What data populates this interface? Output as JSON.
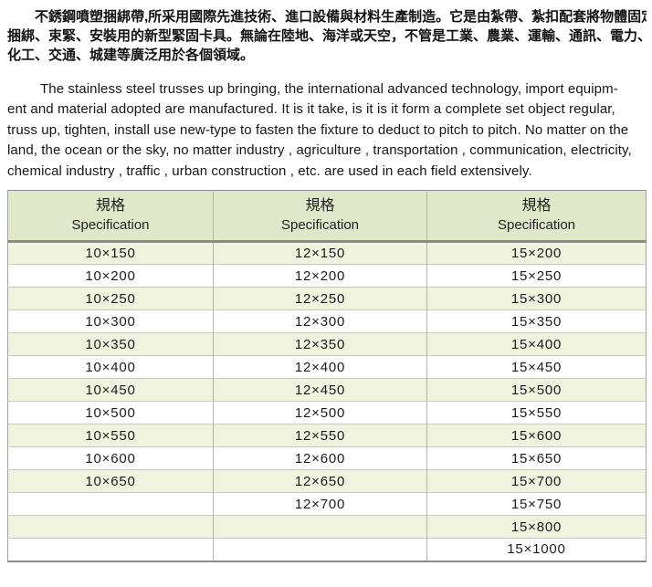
{
  "intro_cn": {
    "lines": [
      "不銹鋼噴塑捆綁帶,所采用國際先進技術、進口設備與材料生產制造。它是由紮帶、紮扣配套將物體固定、",
      "捆綁、束緊、安裝用的新型緊固卡具。無論在陸地、海洋或天空，不管是工業、農業、運輸、通訊、電力、",
      "化工、交通、城建等廣泛用於各個領域。"
    ]
  },
  "intro_en": {
    "lines": [
      "The stainless steel  trusses up bringing, the international advanced technology, import equipm-",
      "ent and material adopted are manufactured. It is it take, is it is it form a complete set object regular,",
      "truss up, tighten, install use new-type to fasten the fixture to deduct to pitch to pitch. No matter on the",
      "land, the ocean or the sky, no matter industry , agriculture , transportation , communication, electricity,",
      "chemical industry , traffic , urban construction , etc. are used in each field extensively."
    ]
  },
  "table": {
    "columns": [
      {
        "cn": "規格",
        "en": "Specification"
      },
      {
        "cn": "規格",
        "en": "Specification"
      },
      {
        "cn": "規格",
        "en": "Specification"
      }
    ],
    "rows": [
      [
        "10×150",
        "12×150",
        "15×200"
      ],
      [
        "10×200",
        "12×200",
        "15×250"
      ],
      [
        "10×250",
        "12×250",
        "15×300"
      ],
      [
        "10×300",
        "12×300",
        "15×350"
      ],
      [
        "10×350",
        "12×350",
        "15×400"
      ],
      [
        "10×400",
        "12×400",
        "15×450"
      ],
      [
        "10×450",
        "12×450",
        "15×500"
      ],
      [
        "10×500",
        "12×500",
        "15×550"
      ],
      [
        "10×550",
        "12×550",
        "15×600"
      ],
      [
        "10×600",
        "12×600",
        "15×650"
      ],
      [
        "10×650",
        "12×650",
        "15×700"
      ],
      [
        "",
        "12×700",
        "15×750"
      ],
      [
        "",
        "",
        "15×800"
      ],
      [
        "",
        "",
        "15×1000"
      ]
    ],
    "colors": {
      "header_bg": "#dfe9ca",
      "row_alt_bg": "#f0f3dd",
      "row_bg": "#ffffff",
      "grid_line": "#c9ccba",
      "column_divider": "#b3b3b1",
      "heavy_line": "#8b8b8b"
    }
  }
}
